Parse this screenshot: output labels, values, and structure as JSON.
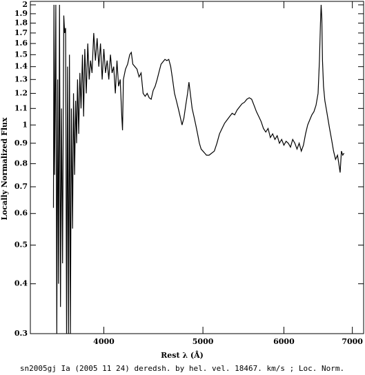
{
  "chart_data": {
    "type": "line",
    "title": "sn2005gj Ia (2005 11 24) deredsh. by hel. vel. 18467. km/s ;  Loc. Norm.",
    "x_label": "Rest λ (Å)",
    "y_label": "Locally Normalized Flux",
    "xscale": "log",
    "yscale": "log",
    "xlim": [
      3390,
      7180
    ],
    "ylim": [
      0.3,
      2
    ],
    "xticks": [
      4000,
      5000,
      6000,
      7000
    ],
    "yticks": [
      0.3,
      0.4,
      0.5,
      0.6,
      0.7,
      0.8,
      0.9,
      1,
      1.1,
      1.2,
      1.3,
      1.4,
      1.5,
      1.6,
      1.7,
      1.8,
      1.9,
      2
    ],
    "color": "#000000",
    "x": [
      3571,
      3575,
      3580,
      3590,
      3598,
      3605,
      3612,
      3620,
      3628,
      3636,
      3645,
      3655,
      3662,
      3670,
      3678,
      3686,
      3694,
      3702,
      3710,
      3718,
      3728,
      3736,
      3745,
      3754,
      3762,
      3770,
      3780,
      3790,
      3800,
      3812,
      3822,
      3832,
      3845,
      3858,
      3870,
      3882,
      3895,
      3910,
      3925,
      3940,
      3955,
      3970,
      3985,
      4000,
      4015,
      4030,
      4045,
      4060,
      4075,
      4090,
      4105,
      4120,
      4135,
      4150,
      4165,
      4172,
      4180,
      4200,
      4220,
      4240,
      4255,
      4270,
      4290,
      4310,
      4330,
      4350,
      4370,
      4390,
      4410,
      4430,
      4450,
      4470,
      4490,
      4510,
      4530,
      4550,
      4570,
      4590,
      4610,
      4630,
      4650,
      4670,
      4690,
      4710,
      4730,
      4750,
      4770,
      4790,
      4810,
      4830,
      4845,
      4860,
      4880,
      4900,
      4920,
      4940,
      4960,
      4980,
      5000,
      5020,
      5040,
      5070,
      5100,
      5130,
      5160,
      5190,
      5220,
      5250,
      5280,
      5310,
      5340,
      5370,
      5400,
      5430,
      5460,
      5490,
      5520,
      5550,
      5580,
      5610,
      5640,
      5670,
      5700,
      5730,
      5760,
      5790,
      5820,
      5850,
      5880,
      5910,
      5940,
      5970,
      6000,
      6030,
      6060,
      6090,
      6120,
      6150,
      6180,
      6210,
      6240,
      6270,
      6300,
      6330,
      6360,
      6390,
      6420,
      6450,
      6480,
      6500,
      6515,
      6525,
      6535,
      6545,
      6560,
      6580,
      6600,
      6620,
      6650,
      6680,
      6710,
      6740,
      6770,
      6790,
      6810,
      6830,
      6850,
      6870
    ],
    "values": [
      0.62,
      2,
      0.75,
      2,
      0.3,
      1.3,
      0.4,
      2,
      0.35,
      1.1,
      0.45,
      1.88,
      1.7,
      1.75,
      0.3,
      1.4,
      0.3,
      1.5,
      0.3,
      1.1,
      0.55,
      1.2,
      0.75,
      1.15,
      0.9,
      1.3,
      0.95,
      1.35,
      1.1,
      1.5,
      1.05,
      1.55,
      1.2,
      1.6,
      1.3,
      1.45,
      1.35,
      1.7,
      1.45,
      1.65,
      1.4,
      1.6,
      1.3,
      1.55,
      1.35,
      1.45,
      1.3,
      1.5,
      1.35,
      1.4,
      1.2,
      1.45,
      1.25,
      1.3,
      1.05,
      0.97,
      1.3,
      1.38,
      1.42,
      1.5,
      1.52,
      1.42,
      1.4,
      1.38,
      1.32,
      1.35,
      1.2,
      1.18,
      1.2,
      1.17,
      1.16,
      1.22,
      1.25,
      1.3,
      1.36,
      1.42,
      1.44,
      1.46,
      1.45,
      1.46,
      1.4,
      1.3,
      1.2,
      1.15,
      1.1,
      1.05,
      1,
      1.04,
      1.12,
      1.2,
      1.28,
      1.2,
      1.1,
      1.05,
      1,
      0.95,
      0.9,
      0.87,
      0.86,
      0.85,
      0.84,
      0.84,
      0.85,
      0.86,
      0.9,
      0.95,
      0.98,
      1.01,
      1.03,
      1.05,
      1.07,
      1.06,
      1.09,
      1.11,
      1.13,
      1.14,
      1.16,
      1.17,
      1.16,
      1.12,
      1.08,
      1.05,
      1.02,
      0.98,
      0.96,
      0.98,
      0.93,
      0.95,
      0.92,
      0.94,
      0.9,
      0.92,
      0.89,
      0.91,
      0.9,
      0.88,
      0.92,
      0.9,
      0.87,
      0.9,
      0.86,
      0.89,
      0.95,
      1,
      1.03,
      1.06,
      1.08,
      1.12,
      1.2,
      1.45,
      1.8,
      2,
      1.85,
      1.45,
      1.25,
      1.15,
      1.1,
      1.05,
      0.98,
      0.92,
      0.86,
      0.82,
      0.84,
      0.8,
      0.76,
      0.86,
      0.84,
      0.85
    ]
  }
}
